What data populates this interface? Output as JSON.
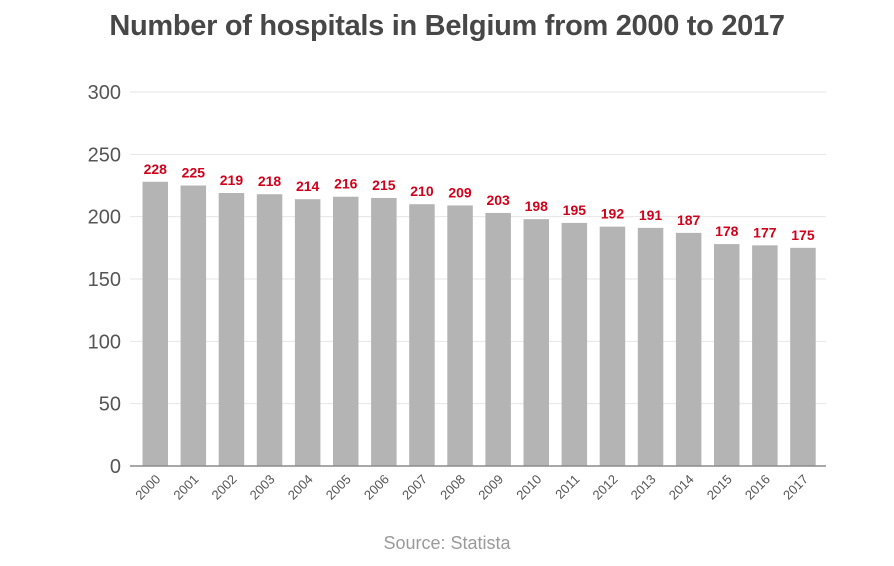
{
  "chart_data": {
    "type": "bar",
    "title": "Number of  hospitals in Belgium from 2000 to 2017",
    "source": "Source: Statista",
    "categories": [
      "2000",
      "2001",
      "2002",
      "2003",
      "2004",
      "2005",
      "2006",
      "2007",
      "2008",
      "2009",
      "2010",
      "2011",
      "2012",
      "2013",
      "2014",
      "2015",
      "2016",
      "2017"
    ],
    "values": [
      228,
      225,
      219,
      218,
      214,
      216,
      215,
      210,
      209,
      203,
      198,
      195,
      192,
      191,
      187,
      178,
      177,
      175
    ],
    "yticks": [
      0,
      50,
      100,
      150,
      200,
      250,
      300
    ],
    "ylim": [
      0,
      300
    ],
    "xlabel": "",
    "ylabel": "",
    "grid": true,
    "colors": {
      "bar": "#b4b4b4",
      "label": "#d0021b",
      "grid": "#e6e6e6",
      "axis": "#8c8c8c",
      "tick": "#555555"
    }
  }
}
